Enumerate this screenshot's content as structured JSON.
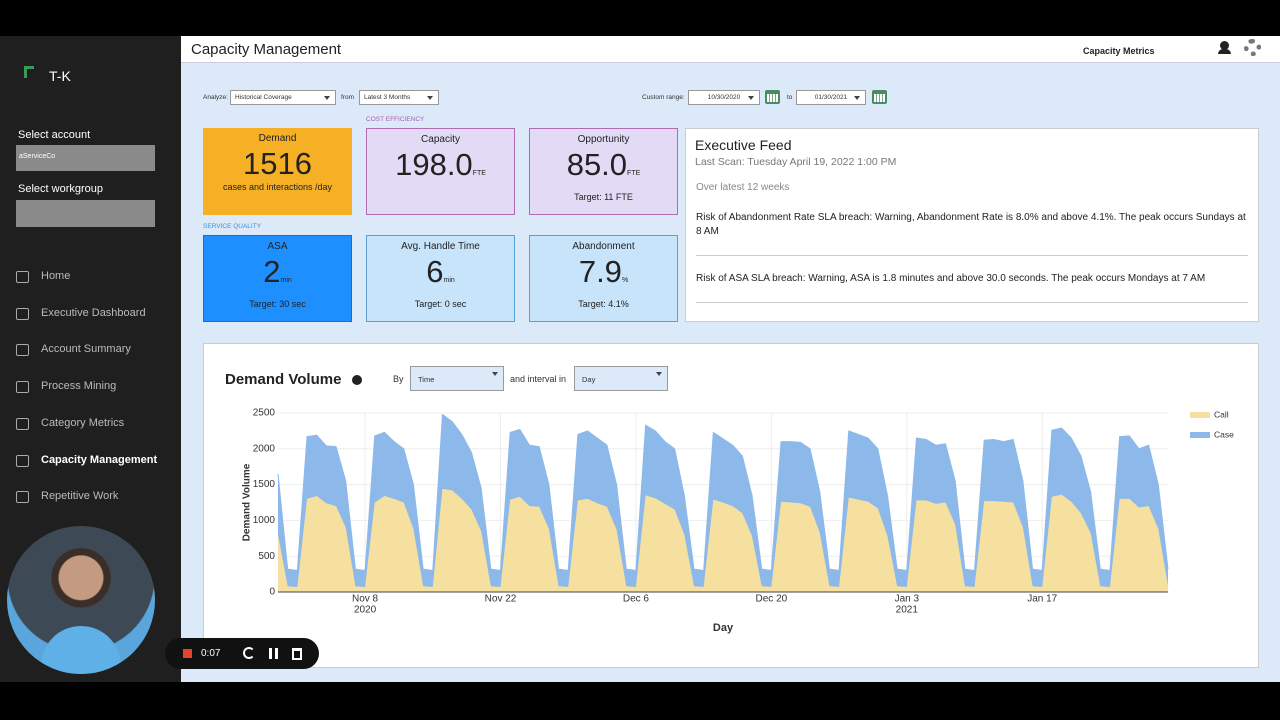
{
  "sidebar": {
    "logo": "T-K",
    "account_label": "Select account",
    "account_value": "aServiceCo",
    "workgroup_label": "Select workgroup",
    "nav": [
      "Home",
      "Executive Dashboard",
      "Account Summary",
      "Process Mining",
      "Category Metrics",
      "Capacity Management",
      "Repetitive Work"
    ]
  },
  "header": {
    "title": "Capacity Management",
    "tab": "Capacity Metrics"
  },
  "recorder": {
    "time": "0:07"
  },
  "filters": {
    "analyze_label": "Analyze:",
    "analyze_value": "Historical Coverage",
    "from_label": "from",
    "from_value": "Latest 3 Months",
    "range_label": "Custom range:",
    "range_start": "10/30/2020",
    "to_label": "to",
    "range_end": "01/30/2021"
  },
  "sections": {
    "cost": "COST EFFICIENCY",
    "service": "SERVICE QUALITY"
  },
  "cards": [
    {
      "label": "Demand",
      "value": "1516",
      "note": "cases and interactions /day"
    },
    {
      "label": "Capacity",
      "value": "198.0",
      "unit": "FTE"
    },
    {
      "label": "Opportunity",
      "value": "85.0",
      "unit": "FTE",
      "note": "Target: 11 FTE"
    },
    {
      "label": "ASA",
      "value": "2",
      "unit": "min",
      "note": "Target: 30 sec"
    },
    {
      "label": "Avg. Handle Time",
      "value": "6",
      "unit": "min",
      "note": "Target: 0 sec"
    },
    {
      "label": "Abandonment",
      "value": "7.9",
      "unit": "%",
      "note": "Target: 4.1%"
    }
  ],
  "feed": {
    "title": "Executive Feed",
    "last_scan": "Last Scan: Tuesday April 19, 2022 1:00 PM",
    "period": "Over latest 12 weeks",
    "items": [
      "Risk of Abandonment Rate SLA breach: Warning, Abandonment Rate is 8.0% and above 4.1%. The peak occurs Sundays at 8 AM",
      "Risk of ASA SLA breach: Warning, ASA is 1.8 minutes and above 30.0 seconds. The peak occurs Mondays at 7 AM"
    ]
  },
  "demand_panel": {
    "by_label": "By",
    "by_value": "Time",
    "interval_label": "and interval in",
    "interval_value": "Day"
  },
  "chart_data": {
    "type": "area",
    "stacked": true,
    "title": "Demand Volume",
    "x_label": "Day",
    "y_label": "Demand Volume",
    "legend": "top-right",
    "grid": true,
    "x": [
      "2020-10-30",
      "2020-10-31",
      "2020-11-01",
      "2020-11-02",
      "2020-11-03",
      "2020-11-04",
      "2020-11-05",
      "2020-11-06",
      "2020-11-07",
      "2020-11-08",
      "2020-11-09",
      "2020-11-10",
      "2020-11-11",
      "2020-11-12",
      "2020-11-13",
      "2020-11-14",
      "2020-11-15",
      "2020-11-16",
      "2020-11-17",
      "2020-11-18",
      "2020-11-19",
      "2020-11-20",
      "2020-11-21",
      "2020-11-22",
      "2020-11-23",
      "2020-11-24",
      "2020-11-25",
      "2020-11-26",
      "2020-11-27",
      "2020-11-28",
      "2020-11-29",
      "2020-11-30",
      "2020-12-01",
      "2020-12-02",
      "2020-12-03",
      "2020-12-04",
      "2020-12-05",
      "2020-12-06",
      "2020-12-07",
      "2020-12-08",
      "2020-12-09",
      "2020-12-10",
      "2020-12-11",
      "2020-12-12",
      "2020-12-13",
      "2020-12-14",
      "2020-12-15",
      "2020-12-16",
      "2020-12-17",
      "2020-12-18",
      "2020-12-19",
      "2020-12-20",
      "2020-12-21",
      "2020-12-22",
      "2020-12-23",
      "2020-12-24",
      "2020-12-25",
      "2020-12-26",
      "2020-12-27",
      "2020-12-28",
      "2020-12-29",
      "2020-12-30",
      "2020-12-31",
      "2021-01-01",
      "2021-01-02",
      "2021-01-03",
      "2021-01-04",
      "2021-01-05",
      "2021-01-06",
      "2021-01-07",
      "2021-01-08",
      "2021-01-09",
      "2021-01-10",
      "2021-01-11",
      "2021-01-12",
      "2021-01-13",
      "2021-01-14",
      "2021-01-15",
      "2021-01-16",
      "2021-01-17",
      "2021-01-18",
      "2021-01-19",
      "2021-01-20",
      "2021-01-21",
      "2021-01-22",
      "2021-01-23",
      "2021-01-24",
      "2021-01-25",
      "2021-01-26",
      "2021-01-27",
      "2021-01-28",
      "2021-01-29",
      "2021-01-30"
    ],
    "series": [
      {
        "name": "Call",
        "color": "#f6e0a0",
        "values": [
          800,
          80,
          70,
          1300,
          1340,
          1240,
          1200,
          900,
          80,
          70,
          1250,
          1340,
          1300,
          1250,
          880,
          80,
          70,
          1440,
          1420,
          1300,
          1150,
          850,
          80,
          70,
          1290,
          1330,
          1200,
          1190,
          880,
          80,
          70,
          1280,
          1300,
          1240,
          1190,
          870,
          80,
          70,
          1350,
          1310,
          1230,
          1150,
          800,
          80,
          70,
          1290,
          1250,
          1200,
          1100,
          780,
          80,
          70,
          1260,
          1250,
          1240,
          1190,
          830,
          80,
          70,
          1320,
          1290,
          1260,
          1170,
          780,
          80,
          70,
          1280,
          1280,
          1230,
          1250,
          940,
          80,
          70,
          1270,
          1270,
          1260,
          1250,
          900,
          80,
          70,
          1330,
          1360,
          1260,
          1100,
          820,
          80,
          70,
          1300,
          1300,
          1180,
          1200,
          880,
          80
        ]
      },
      {
        "name": "Case",
        "color": "#8db9ea",
        "values": [
          850,
          240,
          230,
          870,
          850,
          800,
          830,
          650,
          240,
          230,
          930,
          890,
          800,
          750,
          620,
          240,
          230,
          1040,
          960,
          900,
          800,
          600,
          240,
          230,
          940,
          940,
          850,
          840,
          620,
          240,
          230,
          920,
          950,
          910,
          860,
          630,
          240,
          230,
          980,
          940,
          870,
          850,
          550,
          240,
          230,
          940,
          890,
          850,
          800,
          570,
          240,
          230,
          840,
          850,
          850,
          810,
          570,
          240,
          230,
          930,
          910,
          890,
          830,
          570,
          240,
          230,
          870,
          850,
          820,
          820,
          610,
          240,
          230,
          850,
          860,
          840,
          880,
          650,
          240,
          230,
          930,
          930,
          890,
          800,
          580,
          240,
          230,
          870,
          880,
          820,
          850,
          620,
          240
        ]
      }
    ],
    "xlim": [
      "2020-10-30",
      "2021-01-30"
    ],
    "xticks": [
      {
        "value": "2020-11-08",
        "label": "Nov 8",
        "year": "2020"
      },
      {
        "value": "2020-11-22",
        "label": "Nov 22"
      },
      {
        "value": "2020-12-06",
        "label": "Dec 6"
      },
      {
        "value": "2020-12-20",
        "label": "Dec 20"
      },
      {
        "value": "2021-01-03",
        "label": "Jan 3",
        "year": "2021"
      },
      {
        "value": "2021-01-17",
        "label": "Jan 17"
      }
    ],
    "ylim": [
      0,
      2500
    ],
    "yticks": [
      0,
      500,
      1000,
      1500,
      2000,
      2500
    ]
  }
}
